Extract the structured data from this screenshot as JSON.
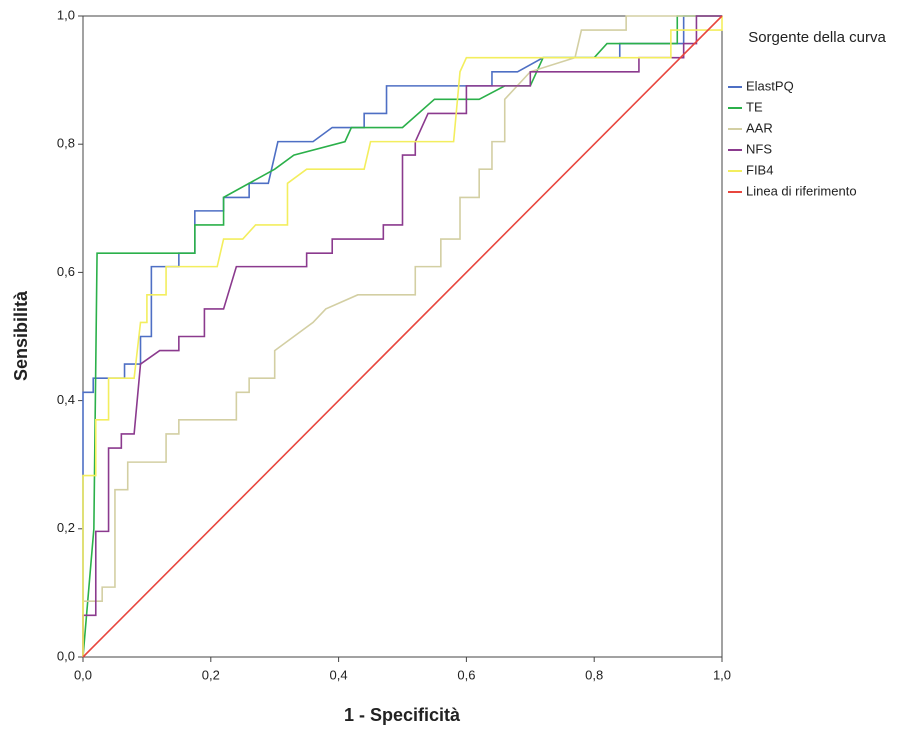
{
  "chart_data": {
    "type": "line",
    "xlabel": "1 - Specificità",
    "ylabel": "Sensibilità",
    "legend_title": "Sorgente della curva",
    "legend": "right",
    "xlim": [
      0,
      1
    ],
    "ylim": [
      0,
      1
    ],
    "xticks": [
      {
        "value": 0,
        "label": "0,0"
      },
      {
        "value": 0.2,
        "label": "0,2"
      },
      {
        "value": 0.4,
        "label": "0,4"
      },
      {
        "value": 0.6,
        "label": "0,6"
      },
      {
        "value": 0.8,
        "label": "0,8"
      },
      {
        "value": 1,
        "label": "1,0"
      }
    ],
    "yticks": [
      {
        "value": 0,
        "label": "0,0"
      },
      {
        "value": 0.2,
        "label": "0,2"
      },
      {
        "value": 0.4,
        "label": "0,4"
      },
      {
        "value": 0.6,
        "label": "0,6"
      },
      {
        "value": 0.8,
        "label": "0,8"
      },
      {
        "value": 1,
        "label": "1,0"
      }
    ],
    "series": [
      {
        "name": "ElastPQ",
        "color": "#4e6fc4",
        "x": [
          0,
          0,
          0.016,
          0.016,
          0.065,
          0.065,
          0.09,
          0.09,
          0.107,
          0.107,
          0.15,
          0.15,
          0.175,
          0.175,
          0.22,
          0.22,
          0.26,
          0.26,
          0.29,
          0.305,
          0.36,
          0.39,
          0.44,
          0.44,
          0.475,
          0.475,
          0.64,
          0.64,
          0.68,
          0.72,
          0.84,
          0.84,
          0.94,
          0.94,
          1
        ],
        "values": [
          0,
          0.413,
          0.413,
          0.435,
          0.435,
          0.457,
          0.457,
          0.5,
          0.5,
          0.609,
          0.609,
          0.63,
          0.63,
          0.696,
          0.696,
          0.717,
          0.717,
          0.739,
          0.739,
          0.804,
          0.804,
          0.826,
          0.826,
          0.848,
          0.848,
          0.891,
          0.891,
          0.913,
          0.913,
          0.935,
          0.935,
          0.957,
          0.957,
          1,
          1
        ]
      },
      {
        "name": "TE",
        "color": "#2bb04a",
        "x": [
          0,
          0.017,
          0.022,
          0.175,
          0.175,
          0.22,
          0.22,
          0.3,
          0.33,
          0.41,
          0.42,
          0.5,
          0.55,
          0.62,
          0.66,
          0.7,
          0.72,
          0.8,
          0.82,
          0.93,
          0.93,
          1
        ],
        "values": [
          0,
          0.2,
          0.63,
          0.63,
          0.674,
          0.674,
          0.717,
          0.761,
          0.783,
          0.804,
          0.826,
          0.826,
          0.87,
          0.87,
          0.891,
          0.891,
          0.935,
          0.935,
          0.957,
          0.957,
          1,
          1
        ]
      },
      {
        "name": "AAR",
        "color": "#d3cfa3",
        "x": [
          0,
          0,
          0.03,
          0.03,
          0.05,
          0.05,
          0.07,
          0.07,
          0.13,
          0.13,
          0.15,
          0.15,
          0.24,
          0.24,
          0.26,
          0.26,
          0.3,
          0.3,
          0.33,
          0.36,
          0.38,
          0.43,
          0.52,
          0.52,
          0.56,
          0.56,
          0.59,
          0.59,
          0.62,
          0.62,
          0.64,
          0.64,
          0.66,
          0.66,
          0.7,
          0.77,
          0.78,
          0.85,
          0.85,
          1
        ],
        "values": [
          0,
          0.087,
          0.087,
          0.109,
          0.109,
          0.261,
          0.261,
          0.304,
          0.304,
          0.348,
          0.348,
          0.37,
          0.37,
          0.413,
          0.413,
          0.435,
          0.435,
          0.478,
          0.5,
          0.522,
          0.543,
          0.565,
          0.565,
          0.609,
          0.609,
          0.652,
          0.652,
          0.717,
          0.717,
          0.761,
          0.761,
          0.804,
          0.804,
          0.87,
          0.913,
          0.935,
          0.978,
          0.978,
          1,
          1
        ]
      },
      {
        "name": "NFS",
        "color": "#8b3a8e",
        "x": [
          0,
          0,
          0.02,
          0.02,
          0.04,
          0.04,
          0.06,
          0.06,
          0.08,
          0.09,
          0.12,
          0.15,
          0.15,
          0.19,
          0.19,
          0.22,
          0.24,
          0.35,
          0.35,
          0.39,
          0.39,
          0.47,
          0.47,
          0.5,
          0.5,
          0.52,
          0.52,
          0.54,
          0.6,
          0.6,
          0.7,
          0.7,
          0.87,
          0.87,
          0.94,
          0.94,
          0.96,
          0.96,
          1
        ],
        "values": [
          0,
          0.065,
          0.065,
          0.196,
          0.196,
          0.326,
          0.326,
          0.348,
          0.348,
          0.457,
          0.478,
          0.478,
          0.5,
          0.5,
          0.543,
          0.543,
          0.609,
          0.609,
          0.63,
          0.63,
          0.652,
          0.652,
          0.674,
          0.674,
          0.783,
          0.783,
          0.804,
          0.848,
          0.848,
          0.891,
          0.891,
          0.913,
          0.913,
          0.935,
          0.935,
          0.957,
          0.957,
          1,
          1
        ]
      },
      {
        "name": "FIB4",
        "color": "#f3ee5e",
        "x": [
          0,
          0,
          0.02,
          0.02,
          0.04,
          0.04,
          0.08,
          0.09,
          0.1,
          0.1,
          0.13,
          0.13,
          0.21,
          0.22,
          0.25,
          0.27,
          0.32,
          0.32,
          0.35,
          0.44,
          0.45,
          0.58,
          0.59,
          0.6,
          0.92,
          0.92,
          1,
          1
        ],
        "values": [
          0,
          0.283,
          0.283,
          0.37,
          0.37,
          0.435,
          0.435,
          0.522,
          0.522,
          0.565,
          0.565,
          0.609,
          0.609,
          0.652,
          0.652,
          0.674,
          0.674,
          0.739,
          0.761,
          0.761,
          0.804,
          0.804,
          0.913,
          0.935,
          0.935,
          0.978,
          0.978,
          1
        ]
      },
      {
        "name": "Linea di riferimento",
        "color": "#e8463e",
        "x": [
          0,
          1
        ],
        "values": [
          0,
          1
        ]
      }
    ]
  }
}
